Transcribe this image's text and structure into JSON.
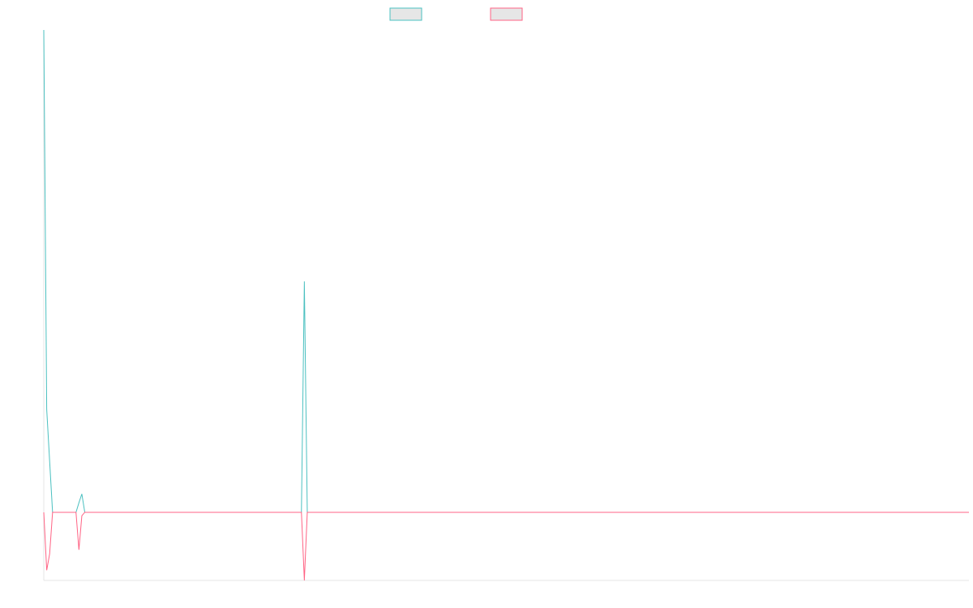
{
  "chart_data": {
    "type": "line",
    "x": [
      0,
      1,
      2,
      3,
      11,
      12,
      13,
      14,
      88,
      89,
      90,
      316
    ],
    "xlim": [
      0,
      316
    ],
    "ylim": [
      -1,
      7.08
    ],
    "series": [
      {
        "color": "#4bc0c0",
        "values": [
          7.08,
          1.51,
          0.75,
          0,
          0,
          0.14,
          0.27,
          0,
          0,
          3.39,
          0,
          0
        ]
      },
      {
        "color": "#ff6384",
        "values": [
          0,
          -0.85,
          -0.61,
          0,
          0,
          -0.55,
          -0.05,
          0,
          0,
          -1,
          0,
          0
        ]
      }
    ]
  }
}
